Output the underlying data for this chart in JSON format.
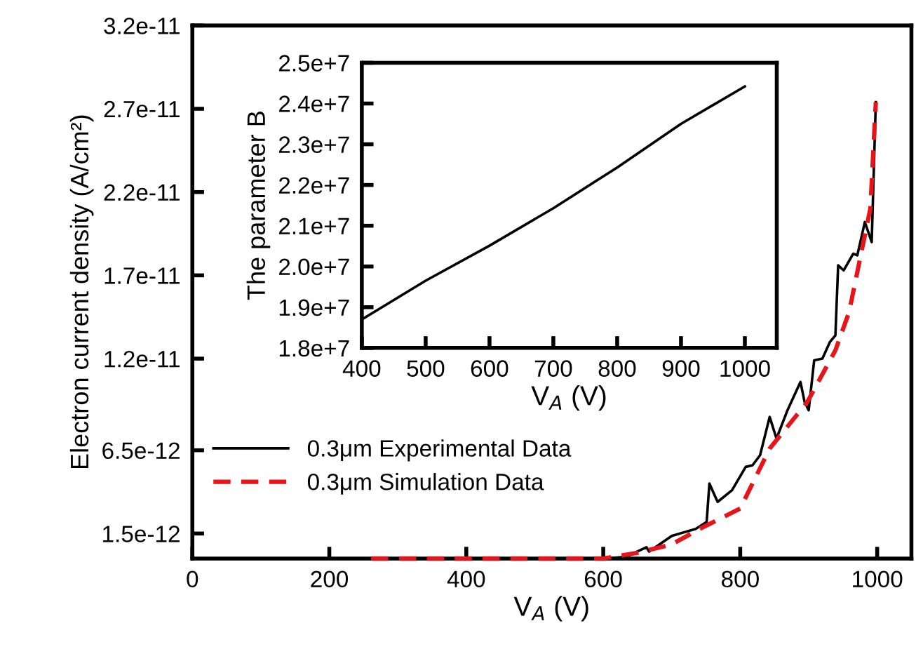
{
  "chart_data": [
    {
      "type": "line",
      "xlabel": "V$_{A}$ (V)",
      "ylabel": "Electron current density (A/cm²)",
      "xlim": [
        0,
        1050
      ],
      "xticks": [
        0,
        200,
        400,
        600,
        800,
        1000
      ],
      "ylim": [
        0,
        3.2e-11
      ],
      "yticks": [
        1.5e-12,
        6.5e-12,
        1.2e-11,
        1.7e-11,
        2.2e-11,
        2.7e-11,
        3.2e-11
      ],
      "legend": "left",
      "grid": false,
      "series": [
        {
          "name": "0.3μm Experimental Data",
          "color": "#000000",
          "line_style": "solid",
          "x": [
            261,
            600,
            633,
            663,
            667,
            700,
            735,
            751,
            755,
            767,
            788,
            808,
            818,
            829,
            843,
            853,
            869,
            888,
            894,
            900,
            908,
            920,
            931,
            939,
            943,
            951,
            965,
            971,
            982,
            992,
            998
          ],
          "values": [
            0,
            0,
            1e-13,
            6.8e-13,
            4.2e-13,
            1.36e-12,
            1.78e-12,
            2.2e-12,
            4.5e-12,
            3.4e-12,
            4.1e-12,
            5.5e-12,
            5.6e-12,
            6.2e-12,
            8.5e-12,
            7.2e-12,
            8.9e-12,
            1.06e-11,
            9.4e-12,
            8.9e-12,
            1.19e-11,
            1.2e-11,
            1.3e-11,
            1.34e-11,
            1.76e-11,
            1.73e-11,
            1.83e-11,
            1.82e-11,
            2.02e-11,
            1.9e-11,
            2.74e-11
          ]
        },
        {
          "name": "0.3μm Simulation Data",
          "color": "#e8141c",
          "line_style": "dashed",
          "x": [
            261,
            600,
            650,
            700,
            741,
            800,
            843,
            898,
            939,
            959,
            976,
            990,
            998
          ],
          "values": [
            0,
            0,
            3.4e-13,
            8.5e-13,
            1.78e-12,
            3e-12,
            6.6e-12,
            9.4e-12,
            1.25e-11,
            1.48e-11,
            1.82e-11,
            2.1e-11,
            2.74e-11
          ]
        }
      ]
    },
    {
      "type": "line",
      "xlabel": "V$_{A}$ (V)",
      "ylabel": "The parameter B",
      "xlim": [
        400,
        1050
      ],
      "xticks": [
        400,
        500,
        600,
        700,
        800,
        900,
        1000
      ],
      "ylim": [
        18000000.0,
        25000000.0
      ],
      "yticks": [
        {
          "value": 18000000.0,
          "label": "1.8e+7"
        },
        {
          "value": 19000000.0,
          "label": "1.9e+7"
        },
        {
          "value": 20000000.0,
          "label": "2.0e+7"
        },
        {
          "value": 21000000.0,
          "label": "2.1e+7"
        },
        {
          "value": 22000000.0,
          "label": "2.2e+7"
        },
        {
          "value": 23000000.0,
          "label": "2.3e+7"
        },
        {
          "value": 24000000.0,
          "label": "2.4e+7"
        },
        {
          "value": 25000000.0,
          "label": "2.5e+7"
        }
      ],
      "legend": false,
      "grid": false,
      "series": [
        {
          "color": "#000000",
          "line_style": "solid",
          "x": [
            400,
            500,
            600,
            700,
            800,
            900,
            1000
          ],
          "values": [
            18700000.0,
            19650000.0,
            20510000.0,
            21430000.0,
            22430000.0,
            23500000.0,
            24420000.0
          ]
        }
      ]
    }
  ]
}
